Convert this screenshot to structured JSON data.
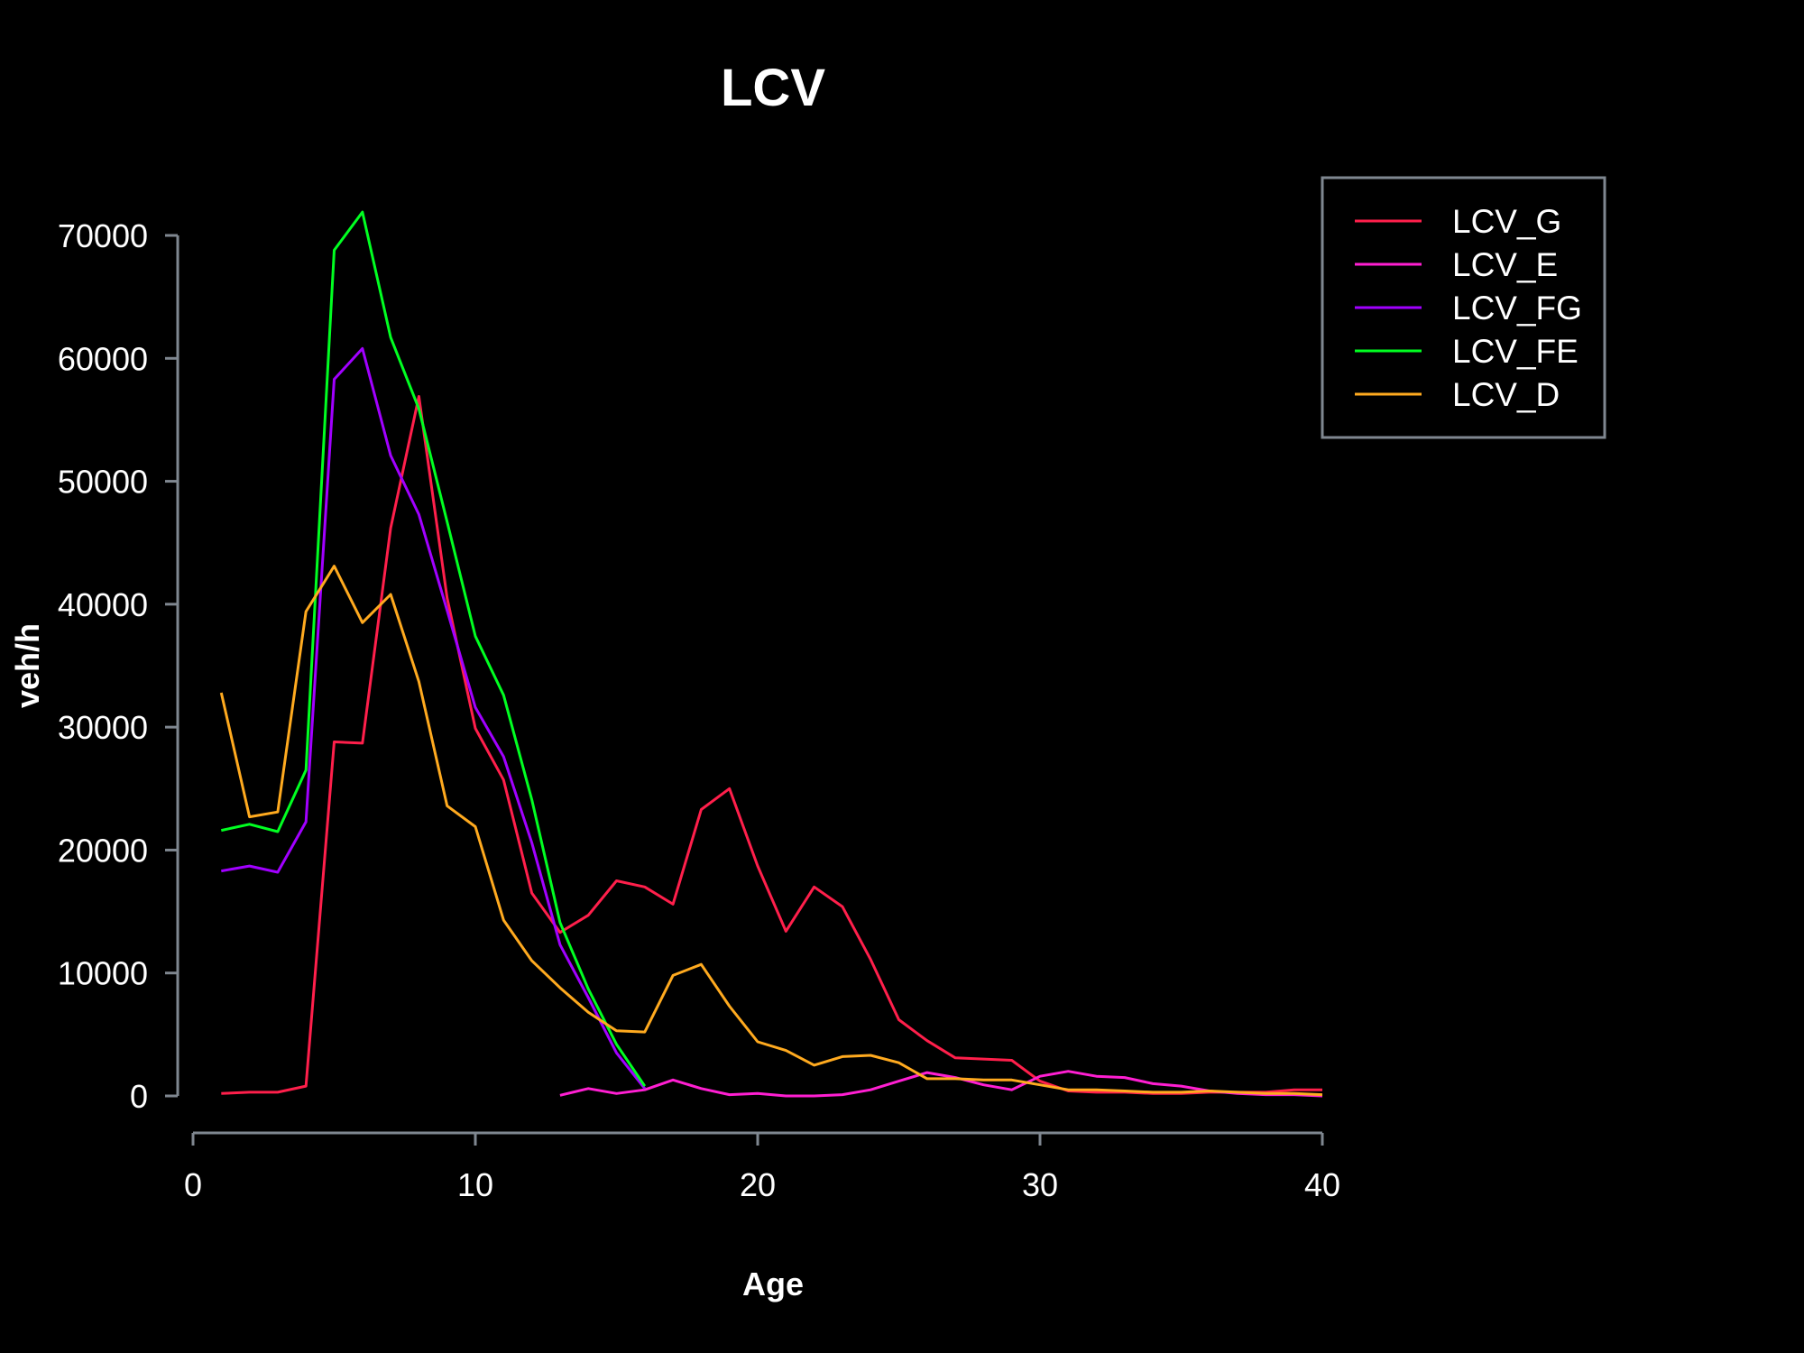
{
  "chart_data": {
    "type": "line",
    "title": "LCV",
    "xlabel": "Age",
    "ylabel": "veh/h",
    "xlim": [
      0,
      40
    ],
    "ylim": [
      0,
      70000
    ],
    "xticks": [
      0,
      10,
      20,
      30,
      40
    ],
    "yticks": [
      0,
      10000,
      20000,
      30000,
      40000,
      50000,
      60000,
      70000
    ],
    "grid": false,
    "legend_position": "top-right",
    "axis_color": "#7f8790",
    "background": "#000000",
    "text_color": "#ffffff",
    "series": [
      {
        "name": "LCV_G",
        "color": "#ff1f4b",
        "x": [
          1,
          2,
          3,
          4,
          5,
          6,
          7,
          8,
          9,
          10,
          11,
          12,
          13,
          14,
          15,
          16,
          17,
          18,
          19,
          20,
          21,
          22,
          23,
          24,
          25,
          26,
          27,
          28,
          29,
          30,
          31,
          32,
          33,
          34,
          35,
          36,
          37,
          38,
          39,
          40
        ],
        "y": [
          200,
          300,
          300,
          800,
          28800,
          28700,
          46200,
          56900,
          40500,
          29900,
          25700,
          16500,
          13300,
          14700,
          17500,
          17000,
          15600,
          23300,
          25000,
          18700,
          13400,
          17000,
          15400,
          11100,
          6200,
          4500,
          3100,
          3000,
          2900,
          1200,
          400,
          300,
          300,
          200,
          200,
          300,
          300,
          300,
          500,
          500
        ]
      },
      {
        "name": "LCV_E",
        "color": "#ff1fd2",
        "x": [
          13,
          14,
          15,
          16,
          17,
          18,
          19,
          20,
          21,
          22,
          23,
          24,
          25,
          26,
          27,
          28,
          29,
          30,
          31,
          32,
          33,
          34,
          35,
          36,
          37,
          38,
          39,
          40
        ],
        "y": [
          50,
          600,
          200,
          500,
          1300,
          600,
          100,
          200,
          0,
          0,
          100,
          500,
          1200,
          1900,
          1500,
          900,
          500,
          1600,
          2000,
          1600,
          1500,
          1000,
          800,
          400,
          200,
          100,
          100,
          0
        ]
      },
      {
        "name": "LCV_FG",
        "color": "#a100ff",
        "x": [
          1,
          2,
          3,
          4,
          5,
          6,
          7,
          8,
          9,
          10,
          11,
          12,
          13,
          14,
          15,
          16
        ],
        "y": [
          18300,
          18700,
          18200,
          22300,
          58300,
          60800,
          52100,
          47300,
          39500,
          31600,
          27600,
          20600,
          12300,
          8000,
          3500,
          600
        ]
      },
      {
        "name": "LCV_FE",
        "color": "#00ff21",
        "x": [
          1,
          2,
          3,
          4,
          5,
          6,
          7,
          8,
          9,
          10,
          11,
          12,
          13,
          14,
          15,
          16
        ],
        "y": [
          21600,
          22100,
          21500,
          26500,
          68800,
          71900,
          61700,
          55900,
          46700,
          37400,
          32600,
          24100,
          14100,
          8700,
          4200,
          800
        ]
      },
      {
        "name": "LCV_D",
        "color": "#ffaa1f",
        "x": [
          1,
          2,
          3,
          4,
          5,
          6,
          7,
          8,
          9,
          10,
          11,
          12,
          13,
          14,
          15,
          16,
          17,
          18,
          19,
          20,
          21,
          22,
          23,
          24,
          25,
          26,
          27,
          28,
          29,
          30,
          31,
          32,
          33,
          34,
          35,
          36,
          37,
          38,
          39,
          40
        ],
        "y": [
          32800,
          22700,
          23100,
          39400,
          43100,
          38500,
          40800,
          33700,
          23600,
          21900,
          14300,
          11000,
          8800,
          6800,
          5300,
          5200,
          9800,
          10700,
          7300,
          4400,
          3700,
          2500,
          3200,
          3300,
          2700,
          1400,
          1400,
          1300,
          1300,
          900,
          500,
          500,
          400,
          300,
          300,
          400,
          300,
          200,
          200,
          100
        ]
      }
    ]
  }
}
